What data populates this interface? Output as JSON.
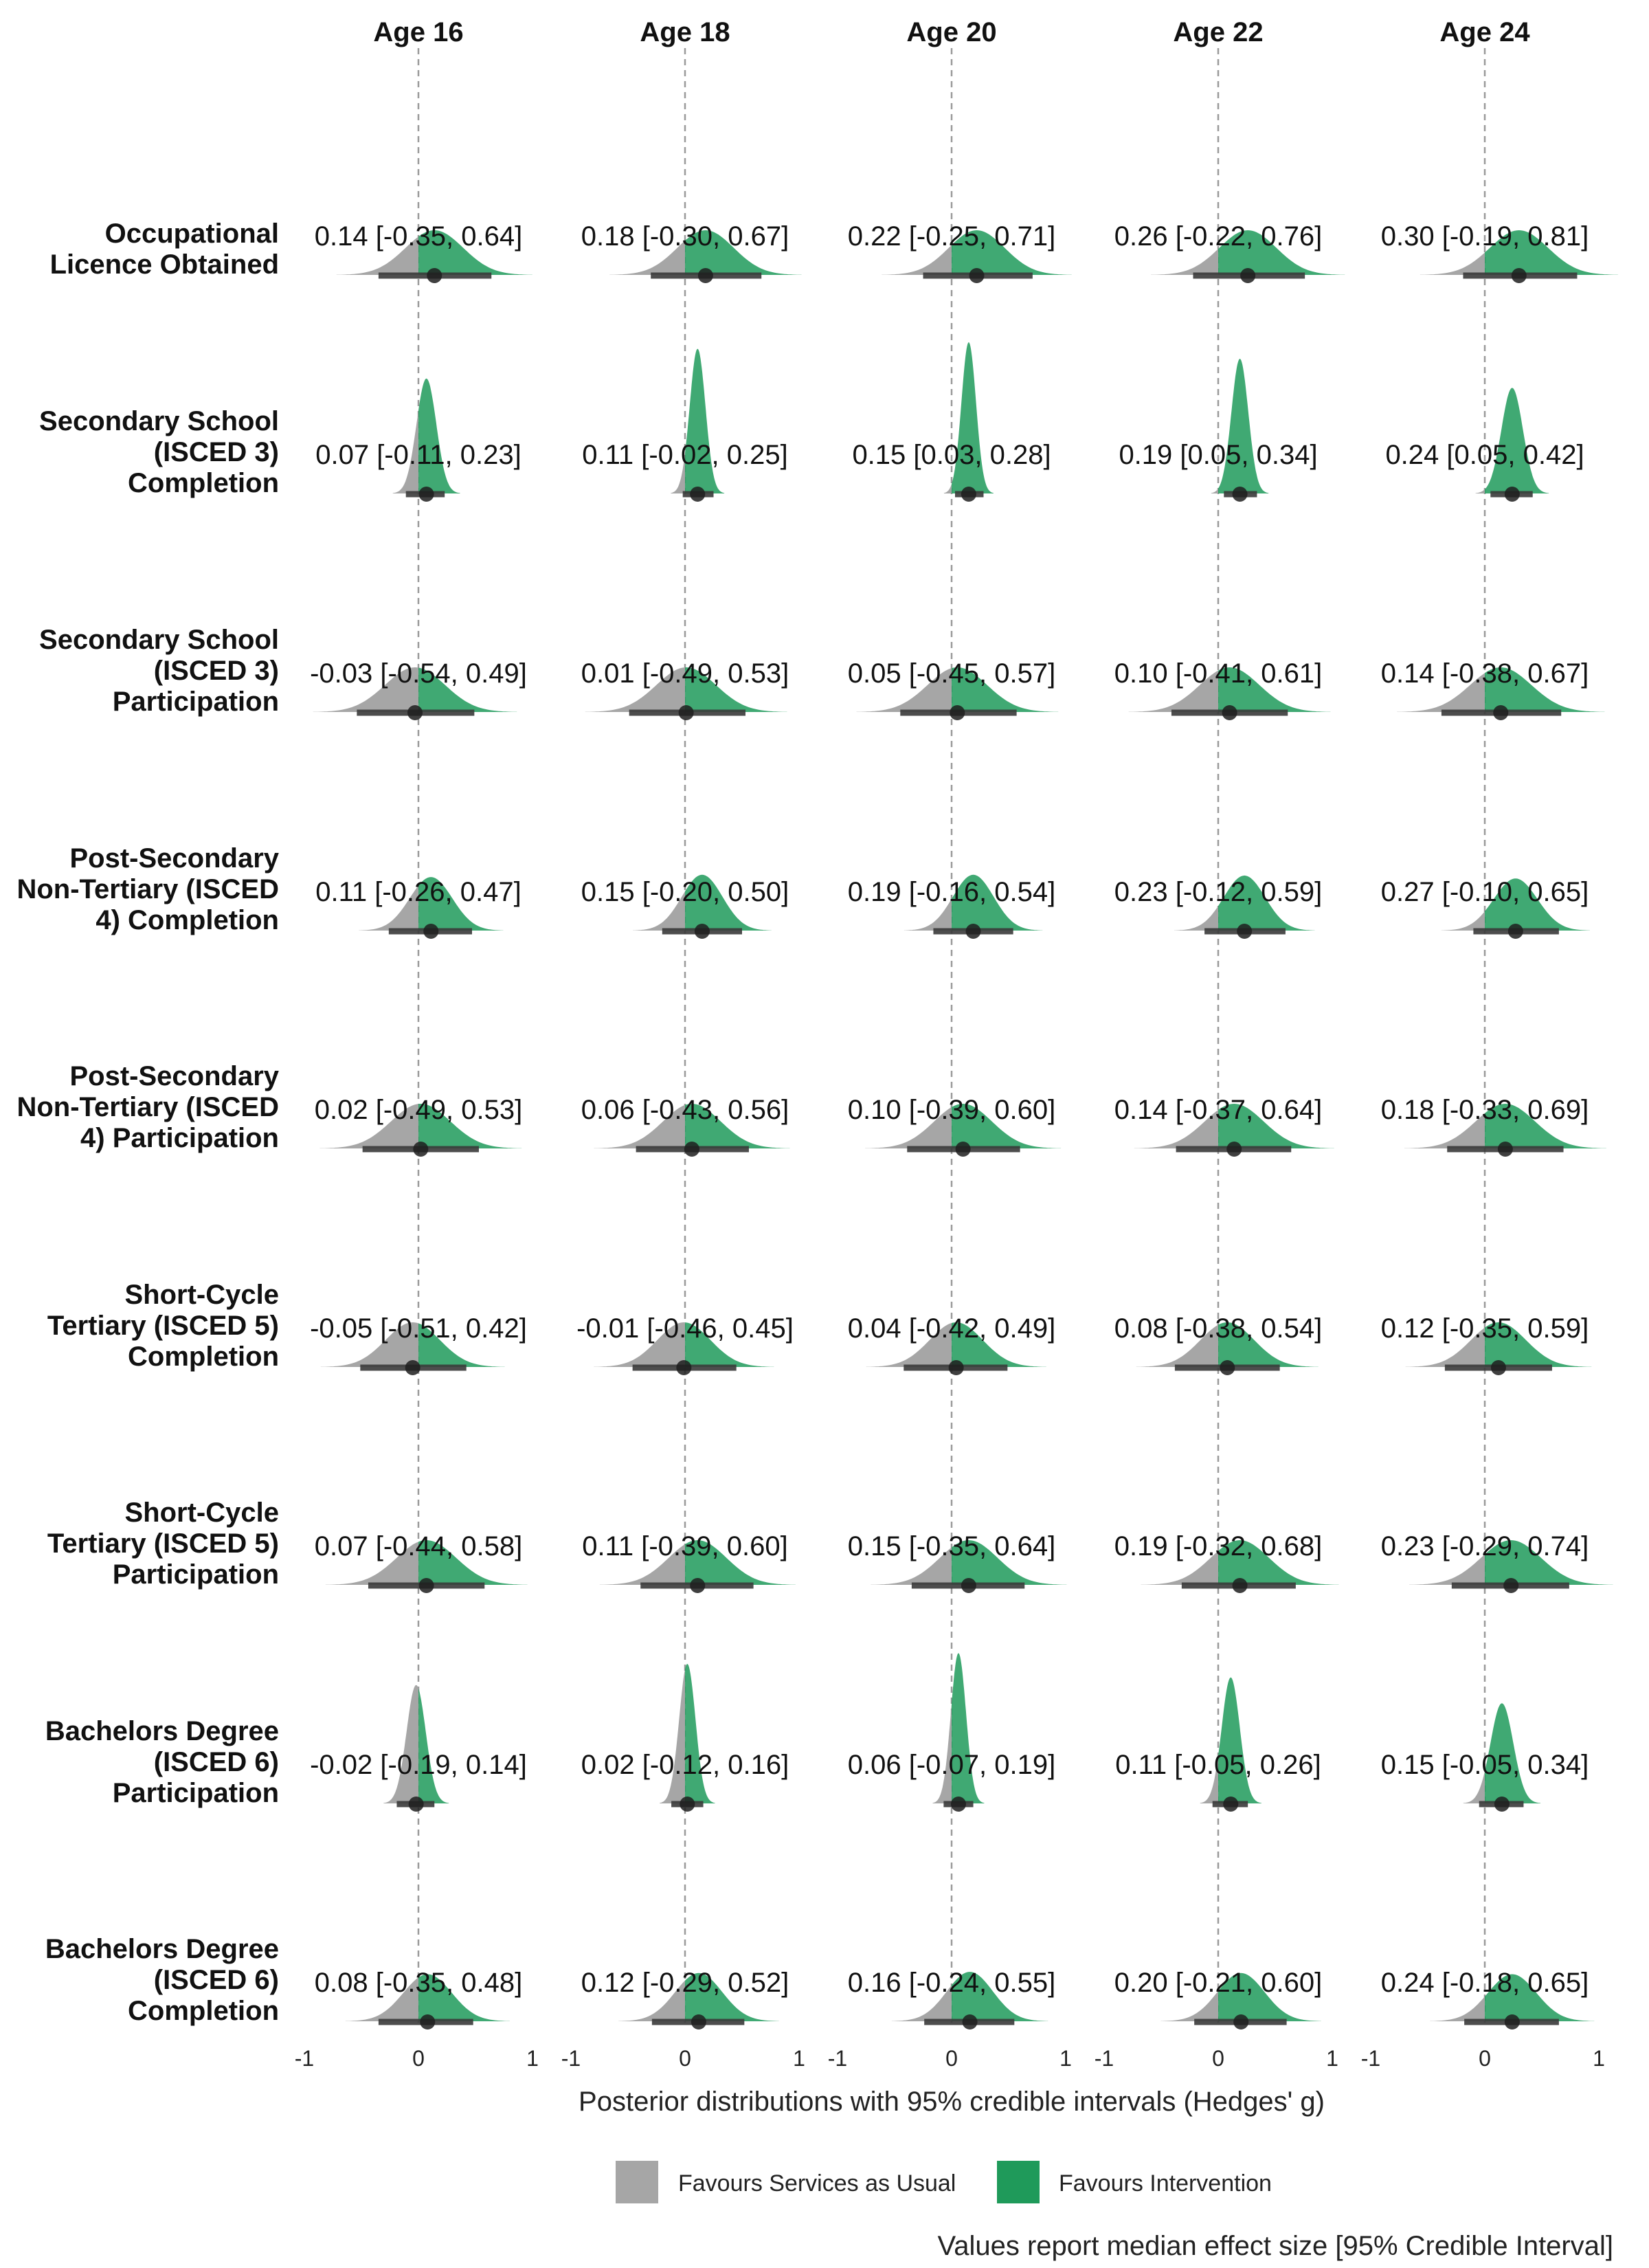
{
  "chart_data": {
    "type": "density-facet",
    "columns": [
      "Age 16",
      "Age 18",
      "Age 20",
      "Age 22",
      "Age 24"
    ],
    "rows": [
      {
        "label": [
          "Occupational",
          "Licence Obtained"
        ],
        "estimates": [
          {
            "median": 0.14,
            "lower": -0.35,
            "upper": 0.64,
            "text": "0.14 [-0.35, 0.64]"
          },
          {
            "median": 0.18,
            "lower": -0.3,
            "upper": 0.67,
            "text": "0.18 [-0.30, 0.67]"
          },
          {
            "median": 0.22,
            "lower": -0.25,
            "upper": 0.71,
            "text": "0.22 [-0.25, 0.71]"
          },
          {
            "median": 0.26,
            "lower": -0.22,
            "upper": 0.76,
            "text": "0.26 [-0.22, 0.76]"
          },
          {
            "median": 0.3,
            "lower": -0.19,
            "upper": 0.81,
            "text": "0.30 [-0.19, 0.81]"
          }
        ]
      },
      {
        "label": [
          "Secondary School",
          "(ISCED 3)",
          "Completion"
        ],
        "estimates": [
          {
            "median": 0.07,
            "lower": -0.11,
            "upper": 0.23,
            "text": "0.07 [-0.11, 0.23]"
          },
          {
            "median": 0.11,
            "lower": -0.02,
            "upper": 0.25,
            "text": "0.11 [-0.02, 0.25]"
          },
          {
            "median": 0.15,
            "lower": 0.03,
            "upper": 0.28,
            "text": "0.15 [0.03, 0.28]"
          },
          {
            "median": 0.19,
            "lower": 0.05,
            "upper": 0.34,
            "text": "0.19 [0.05, 0.34]"
          },
          {
            "median": 0.24,
            "lower": 0.05,
            "upper": 0.42,
            "text": "0.24 [0.05, 0.42]"
          }
        ]
      },
      {
        "label": [
          "Secondary School",
          "(ISCED 3)",
          "Participation"
        ],
        "estimates": [
          {
            "median": -0.03,
            "lower": -0.54,
            "upper": 0.49,
            "text": "-0.03 [-0.54, 0.49]"
          },
          {
            "median": 0.01,
            "lower": -0.49,
            "upper": 0.53,
            "text": "0.01 [-0.49, 0.53]"
          },
          {
            "median": 0.05,
            "lower": -0.45,
            "upper": 0.57,
            "text": "0.05 [-0.45, 0.57]"
          },
          {
            "median": 0.1,
            "lower": -0.41,
            "upper": 0.61,
            "text": "0.10 [-0.41, 0.61]"
          },
          {
            "median": 0.14,
            "lower": -0.38,
            "upper": 0.67,
            "text": "0.14 [-0.38, 0.67]"
          }
        ]
      },
      {
        "label": [
          "Post-Secondary",
          "Non-Tertiary (ISCED",
          "4) Completion"
        ],
        "estimates": [
          {
            "median": 0.11,
            "lower": -0.26,
            "upper": 0.47,
            "text": "0.11 [-0.26, 0.47]"
          },
          {
            "median": 0.15,
            "lower": -0.2,
            "upper": 0.5,
            "text": "0.15 [-0.20, 0.50]"
          },
          {
            "median": 0.19,
            "lower": -0.16,
            "upper": 0.54,
            "text": "0.19 [-0.16, 0.54]"
          },
          {
            "median": 0.23,
            "lower": -0.12,
            "upper": 0.59,
            "text": "0.23 [-0.12, 0.59]"
          },
          {
            "median": 0.27,
            "lower": -0.1,
            "upper": 0.65,
            "text": "0.27 [-0.10, 0.65]"
          }
        ]
      },
      {
        "label": [
          "Post-Secondary",
          "Non-Tertiary (ISCED",
          "4) Participation"
        ],
        "estimates": [
          {
            "median": 0.02,
            "lower": -0.49,
            "upper": 0.53,
            "text": "0.02 [-0.49, 0.53]"
          },
          {
            "median": 0.06,
            "lower": -0.43,
            "upper": 0.56,
            "text": "0.06 [-0.43, 0.56]"
          },
          {
            "median": 0.1,
            "lower": -0.39,
            "upper": 0.6,
            "text": "0.10 [-0.39, 0.60]"
          },
          {
            "median": 0.14,
            "lower": -0.37,
            "upper": 0.64,
            "text": "0.14 [-0.37, 0.64]"
          },
          {
            "median": 0.18,
            "lower": -0.33,
            "upper": 0.69,
            "text": "0.18 [-0.33, 0.69]"
          }
        ]
      },
      {
        "label": [
          "Short-Cycle",
          "Tertiary (ISCED 5)",
          "Completion"
        ],
        "estimates": [
          {
            "median": -0.05,
            "lower": -0.51,
            "upper": 0.42,
            "text": "-0.05 [-0.51, 0.42]"
          },
          {
            "median": -0.01,
            "lower": -0.46,
            "upper": 0.45,
            "text": "-0.01 [-0.46, 0.45]"
          },
          {
            "median": 0.04,
            "lower": -0.42,
            "upper": 0.49,
            "text": "0.04 [-0.42, 0.49]"
          },
          {
            "median": 0.08,
            "lower": -0.38,
            "upper": 0.54,
            "text": "0.08 [-0.38, 0.54]"
          },
          {
            "median": 0.12,
            "lower": -0.35,
            "upper": 0.59,
            "text": "0.12 [-0.35, 0.59]"
          }
        ]
      },
      {
        "label": [
          "Short-Cycle",
          "Tertiary (ISCED 5)",
          "Participation"
        ],
        "estimates": [
          {
            "median": 0.07,
            "lower": -0.44,
            "upper": 0.58,
            "text": "0.07 [-0.44, 0.58]"
          },
          {
            "median": 0.11,
            "lower": -0.39,
            "upper": 0.6,
            "text": "0.11 [-0.39, 0.60]"
          },
          {
            "median": 0.15,
            "lower": -0.35,
            "upper": 0.64,
            "text": "0.15 [-0.35, 0.64]"
          },
          {
            "median": 0.19,
            "lower": -0.32,
            "upper": 0.68,
            "text": "0.19 [-0.32, 0.68]"
          },
          {
            "median": 0.23,
            "lower": -0.29,
            "upper": 0.74,
            "text": "0.23 [-0.29, 0.74]"
          }
        ]
      },
      {
        "label": [
          "Bachelors Degree",
          "(ISCED 6)",
          "Participation"
        ],
        "estimates": [
          {
            "median": -0.02,
            "lower": -0.19,
            "upper": 0.14,
            "text": "-0.02 [-0.19, 0.14]"
          },
          {
            "median": 0.02,
            "lower": -0.12,
            "upper": 0.16,
            "text": "0.02 [-0.12, 0.16]"
          },
          {
            "median": 0.06,
            "lower": -0.07,
            "upper": 0.19,
            "text": "0.06 [-0.07, 0.19]"
          },
          {
            "median": 0.11,
            "lower": -0.05,
            "upper": 0.26,
            "text": "0.11 [-0.05, 0.26]"
          },
          {
            "median": 0.15,
            "lower": -0.05,
            "upper": 0.34,
            "text": "0.15 [-0.05, 0.34]"
          }
        ]
      },
      {
        "label": [
          "Bachelors Degree",
          "(ISCED 6)",
          "Completion"
        ],
        "estimates": [
          {
            "median": 0.08,
            "lower": -0.35,
            "upper": 0.48,
            "text": "0.08 [-0.35, 0.48]"
          },
          {
            "median": 0.12,
            "lower": -0.29,
            "upper": 0.52,
            "text": "0.12 [-0.29, 0.52]"
          },
          {
            "median": 0.16,
            "lower": -0.24,
            "upper": 0.55,
            "text": "0.16 [-0.24, 0.55]"
          },
          {
            "median": 0.2,
            "lower": -0.21,
            "upper": 0.6,
            "text": "0.20 [-0.21, 0.60]"
          },
          {
            "median": 0.24,
            "lower": -0.18,
            "upper": 0.65,
            "text": "0.24 [-0.18, 0.65]"
          }
        ]
      }
    ],
    "xlim": [
      -1,
      1
    ],
    "xticks": [
      -1,
      0,
      1
    ],
    "reference_line": 0,
    "xlabel": "Posterior distributions with 95% credible intervals (Hedges' g)",
    "legend": [
      {
        "label": "Favours Services as Usual",
        "color": "#a6a6a6"
      },
      {
        "label": "Favours Intervention",
        "color": "#1f9a5a"
      }
    ],
    "legend_position": "bottom",
    "caption": "Values report median effect size [95% Credible Interval]",
    "grid": false
  },
  "colors": {
    "negative": "#a6a6a6",
    "positive": "#1f9a5a",
    "interval": "#3a3a3a",
    "point": "#1e1e1e",
    "refline": "#9a9a9a"
  }
}
